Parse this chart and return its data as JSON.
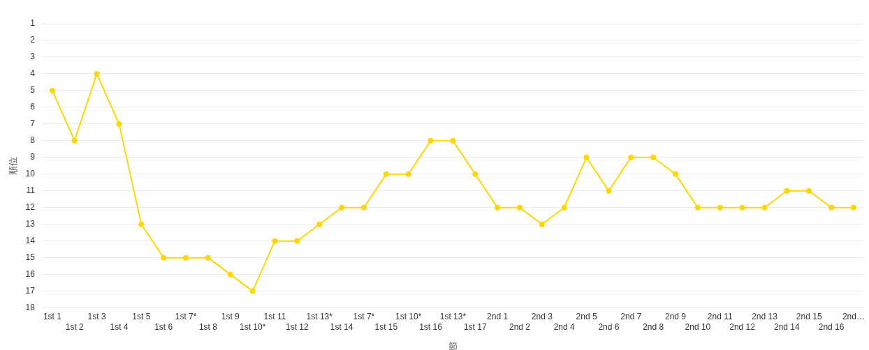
{
  "chart_data": {
    "type": "line",
    "xlabel": "節",
    "ylabel": "順位",
    "categories": [
      "1st 1",
      "1st 2",
      "1st 3",
      "1st 4",
      "1st 5",
      "1st 6",
      "1st 7*",
      "1st 8",
      "1st 9",
      "1st 10*",
      "1st 11",
      "1st 12",
      "1st 13*",
      "1st 14",
      "1st 7*",
      "1st 15",
      "1st 10*",
      "1st 16",
      "1st 13*",
      "1st 17",
      "2nd 1",
      "2nd 2",
      "2nd 3",
      "2nd 4",
      "2nd 5",
      "2nd 6",
      "2nd 7",
      "2nd 8",
      "2nd 9",
      "2nd 10",
      "2nd 11",
      "2nd 12",
      "2nd 13",
      "2nd 14",
      "2nd 15",
      "2nd 16",
      "2nd…"
    ],
    "series": [
      {
        "color": "#ffd700",
        "values": [
          5,
          8,
          4,
          7,
          13,
          15,
          15,
          15,
          16,
          17,
          14,
          14,
          13,
          12,
          12,
          10,
          10,
          8,
          8,
          10,
          12,
          12,
          13,
          12,
          9,
          11,
          9,
          9,
          10,
          12,
          12,
          12,
          12,
          11,
          11,
          12,
          12
        ]
      }
    ],
    "ylim": [
      18,
      1
    ],
    "yticks": [
      1,
      2,
      3,
      4,
      5,
      6,
      7,
      8,
      9,
      10,
      11,
      12,
      13,
      14,
      15,
      16,
      17,
      18
    ],
    "grid": "y",
    "marker": "circle",
    "line_style": "solid"
  }
}
